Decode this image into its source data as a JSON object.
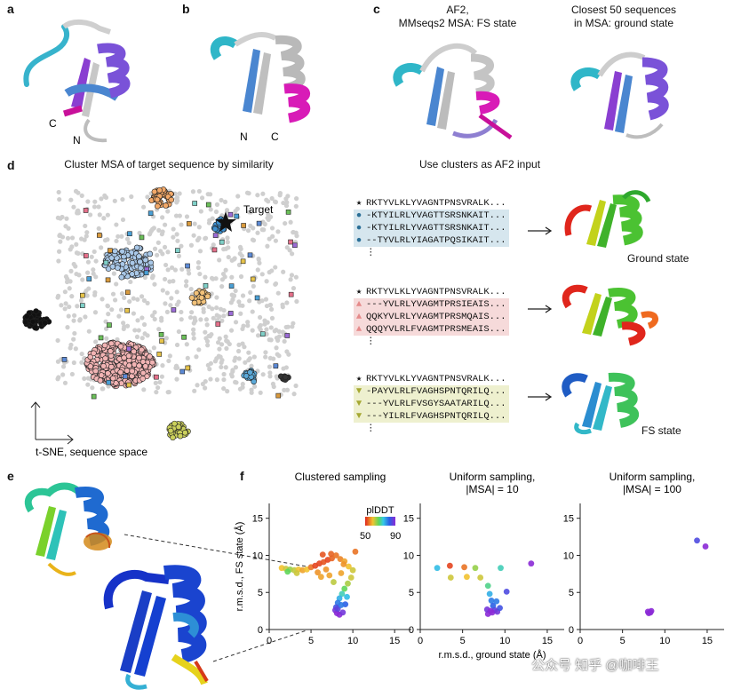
{
  "panels": {
    "a": {
      "letter": "a",
      "label_c": "C",
      "label_n": "N"
    },
    "b": {
      "letter": "b",
      "label_n": "N",
      "label_c": "C"
    },
    "c": {
      "letter": "c",
      "caption_left": "AF2,\nMMseqs2 MSA: FS state",
      "caption_right": "Closest 50 sequences\nin MSA: ground state"
    },
    "d": {
      "letter": "d",
      "title_left": "Cluster MSA of target sequence by similarity",
      "title_right": "Use clusters as AF2 input",
      "target_label": "Target",
      "axis_caption": "t-SNE, sequence space",
      "clusters": [
        {
          "name": "blue",
          "color": "#d6e6ee",
          "marker": "●",
          "marker_color": "#2b6f97",
          "rows": [
            "RKTYVLKLYVAGNTPNSVRALK...",
            "-KTYILRLYVAGTTSRSNKAIT...",
            "-KTYILRLYVAGTTSRSNKAIT...",
            "--TYVLRLYIAGATPQSIKAIT...",
            "⋮"
          ],
          "result_label": "Ground state"
        },
        {
          "name": "pink",
          "color": "#f6dada",
          "marker": "▲",
          "marker_color": "#e58a8a",
          "rows": [
            "RKTYVLKLYVAGNTPNSVRALK...",
            "---YVLRLYVAGMTPRSIEAIS...",
            "QQKYVLRLYVAGMTPRSMQAIS...",
            "QQQYVLRLFVAGMTPRSMEAIS...",
            "⋮"
          ],
          "result_label": ""
        },
        {
          "name": "olive",
          "color": "#eef0cf",
          "marker": "▼",
          "marker_color": "#a5a832",
          "rows": [
            "RKTYVLKLYVAGNTPNSVRALK...",
            "-PAYVLRLFVAGHSPNTQRILQ...",
            "---YVLRLFVSGYSAATARILQ...",
            "---YILRLFVAGHSPNTQRILQ...",
            "⋮"
          ],
          "result_label": "FS state"
        }
      ]
    },
    "e": {
      "letter": "e"
    },
    "f": {
      "letter": "f"
    }
  },
  "chart_data": [
    {
      "type": "scatter",
      "title": "Clustered sampling",
      "xlabel": "",
      "ylabel": "r.m.s.d., FS state (Å)",
      "xlim": [
        0,
        17
      ],
      "ylim": [
        0,
        17
      ],
      "xticks": [
        0,
        5,
        10,
        15
      ],
      "yticks": [
        0,
        5,
        10,
        15
      ],
      "colorbar": {
        "title": "plDDT",
        "min": 50,
        "max": 90
      },
      "points": [
        [
          1.5,
          8.3,
          60
        ],
        [
          2.0,
          8.2,
          62
        ],
        [
          2.5,
          8.1,
          65
        ],
        [
          3.0,
          8.0,
          63
        ],
        [
          3.5,
          8.1,
          60
        ],
        [
          4.0,
          8.0,
          58
        ],
        [
          4.5,
          8.1,
          60
        ],
        [
          5.0,
          8.4,
          55
        ],
        [
          5.5,
          8.6,
          52
        ],
        [
          6.0,
          8.9,
          52
        ],
        [
          6.5,
          9.1,
          53
        ],
        [
          7.0,
          9.4,
          52
        ],
        [
          7.5,
          9.6,
          54
        ],
        [
          8.0,
          10.0,
          55
        ],
        [
          8.5,
          9.5,
          56
        ],
        [
          9.0,
          9.2,
          58
        ],
        [
          9.5,
          8.5,
          60
        ],
        [
          10.0,
          8.0,
          62
        ],
        [
          10.3,
          10.5,
          55
        ],
        [
          9.8,
          7.0,
          62
        ],
        [
          9.4,
          6.2,
          64
        ],
        [
          9.0,
          5.5,
          68
        ],
        [
          8.7,
          4.8,
          72
        ],
        [
          8.4,
          4.2,
          76
        ],
        [
          8.2,
          3.6,
          80
        ],
        [
          8.0,
          3.0,
          84
        ],
        [
          7.9,
          2.6,
          88
        ],
        [
          8.1,
          2.2,
          90
        ],
        [
          8.4,
          2.0,
          90
        ],
        [
          8.8,
          2.3,
          88
        ],
        [
          9.1,
          3.4,
          82
        ],
        [
          9.3,
          4.4,
          75
        ],
        [
          6.8,
          8.1,
          57
        ],
        [
          7.2,
          7.3,
          58
        ],
        [
          7.7,
          6.4,
          63
        ],
        [
          8.6,
          7.6,
          58
        ],
        [
          5.8,
          7.7,
          57
        ],
        [
          6.2,
          7.1,
          58
        ],
        [
          2.2,
          7.8,
          68
        ],
        [
          3.3,
          7.6,
          62
        ],
        [
          7.4,
          10.2,
          54
        ],
        [
          6.4,
          10.1,
          53
        ],
        [
          8.9,
          8.8,
          57
        ],
        [
          8.2,
          2.8,
          86
        ],
        [
          8.6,
          3.3,
          80
        ]
      ]
    },
    {
      "type": "scatter",
      "title": "Uniform sampling,\n|MSA| = 10",
      "xlabel": "r.m.s.d., ground state (Å)",
      "ylabel": "",
      "xlim": [
        0,
        17
      ],
      "ylim": [
        0,
        17
      ],
      "xticks": [
        0,
        5,
        10,
        15
      ],
      "yticks": [
        0,
        5,
        10,
        15
      ],
      "points": [
        [
          2.0,
          8.3,
          75
        ],
        [
          3.5,
          8.6,
          52
        ],
        [
          3.6,
          7.0,
          62
        ],
        [
          5.2,
          8.4,
          55
        ],
        [
          5.5,
          7.1,
          60
        ],
        [
          6.5,
          8.3,
          65
        ],
        [
          7.1,
          7.0,
          62
        ],
        [
          9.5,
          8.3,
          72
        ],
        [
          10.2,
          5.1,
          85
        ],
        [
          13.1,
          8.9,
          90
        ],
        [
          8.0,
          5.9,
          70
        ],
        [
          8.2,
          4.8,
          76
        ],
        [
          8.4,
          3.9,
          80
        ],
        [
          8.6,
          3.2,
          82
        ],
        [
          8.8,
          2.6,
          86
        ],
        [
          8.5,
          2.3,
          90
        ],
        [
          8.0,
          2.1,
          90
        ],
        [
          9.1,
          2.4,
          88
        ],
        [
          9.4,
          2.9,
          84
        ],
        [
          7.9,
          2.7,
          88
        ],
        [
          9.0,
          3.8,
          80
        ],
        [
          8.3,
          2.5,
          90
        ]
      ]
    },
    {
      "type": "scatter",
      "title": "Uniform sampling,\n|MSA| = 100",
      "xlabel": "",
      "ylabel": "",
      "xlim": [
        0,
        17
      ],
      "ylim": [
        0,
        17
      ],
      "xticks": [
        0,
        5,
        10,
        15
      ],
      "yticks": [
        0,
        5,
        10,
        15
      ],
      "points": [
        [
          13.8,
          12.0,
          85
        ],
        [
          14.8,
          11.2,
          90
        ],
        [
          8.0,
          2.4,
          90
        ],
        [
          8.3,
          2.3,
          90
        ],
        [
          8.1,
          2.2,
          90
        ],
        [
          8.4,
          2.5,
          90
        ]
      ]
    }
  ],
  "watermark": "知乎 @咖啡王",
  "watermark_prefix": "公众号"
}
